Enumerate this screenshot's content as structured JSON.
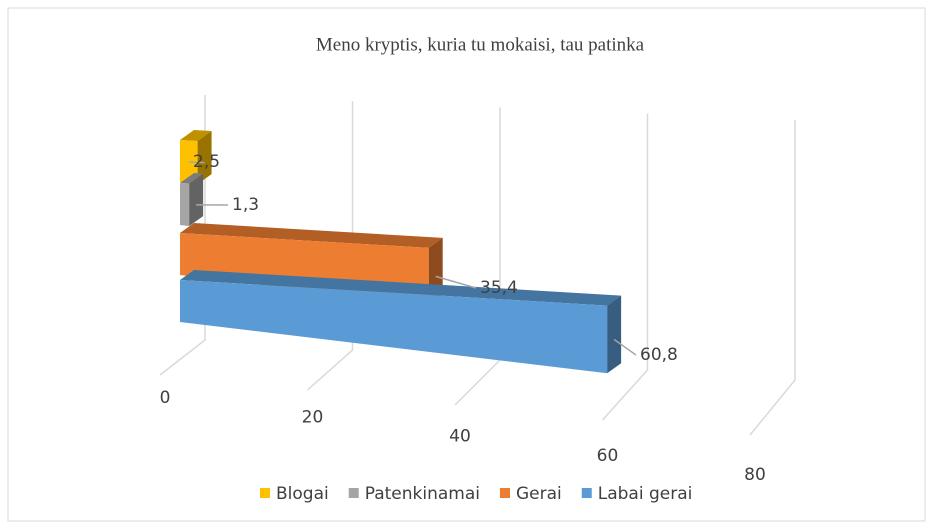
{
  "chart_data": {
    "type": "bar3d",
    "title": "Meno kryptis, kuria tu mokaisi, tau patinka",
    "series": [
      {
        "name": "Blogai",
        "color": "#ffc000",
        "values": [
          2.5
        ],
        "value_labels": [
          "2,5"
        ]
      },
      {
        "name": "Patenkinamai",
        "color": "#a5a5a5",
        "values": [
          1.3
        ],
        "value_labels": [
          "1,3"
        ]
      },
      {
        "name": "Gerai",
        "color": "#ed7d31",
        "values": [
          35.4
        ],
        "value_labels": [
          "35,4"
        ]
      },
      {
        "name": "Labai gerai",
        "color": "#5b9bd5",
        "values": [
          60.8
        ],
        "value_labels": [
          "60,8"
        ]
      }
    ],
    "xlim": [
      0,
      80
    ],
    "xticks": [
      0,
      20,
      40,
      60,
      80
    ],
    "grid": true,
    "legend": "bottom"
  }
}
